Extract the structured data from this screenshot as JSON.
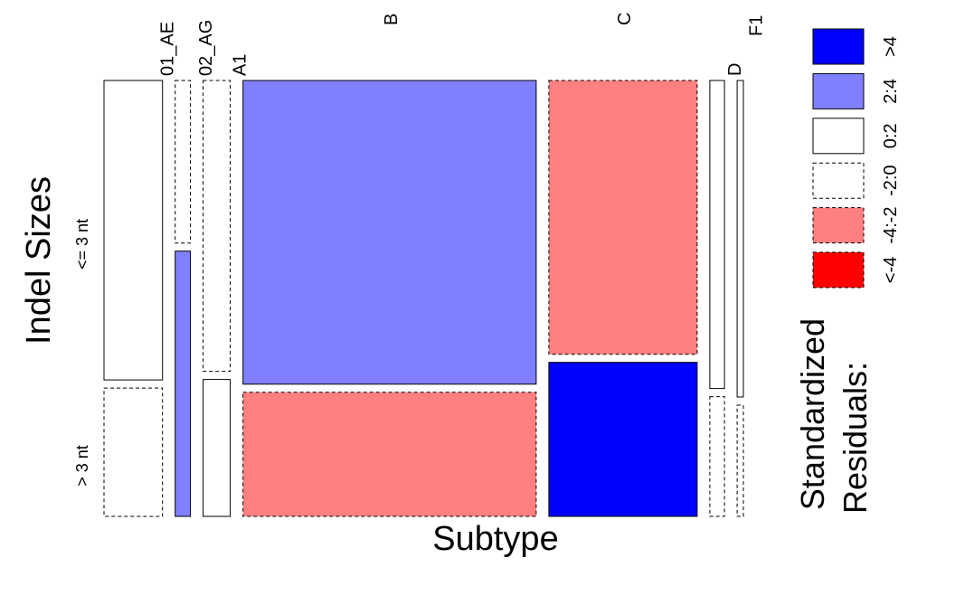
{
  "chart_data": {
    "type": "mosaic",
    "xlabel": "Subtype",
    "ylabel": "Indel Sizes",
    "categories": [
      "01_AE",
      "02_AG",
      "A1",
      "B",
      "C",
      "D",
      "F1"
    ],
    "rows": [
      "<= 3 nt",
      "> 3 nt"
    ],
    "column_proportions": [
      0.084,
      0.022,
      0.039,
      0.421,
      0.213,
      0.021,
      0.009
    ],
    "row_fraction_le3": [
      0.7,
      0.38,
      0.68,
      0.71,
      0.64,
      0.72,
      0.74
    ],
    "residual_class": [
      [
        "0:2",
        "-2:0"
      ],
      [
        "-2:0",
        "2:4"
      ],
      [
        "-2:0",
        "0:2"
      ],
      [
        "2:4",
        "-4:-2"
      ],
      [
        "-4:-2",
        ">4"
      ],
      [
        "0:2",
        "-2:0"
      ],
      [
        "0:2",
        "-2:0"
      ]
    ],
    "legend": {
      "title": [
        "Standardized",
        "Residuals:"
      ],
      "items": [
        {
          "label": ">4",
          "color": "#0000ff",
          "border": "solid"
        },
        {
          "label": "2:4",
          "color": "#8080ff",
          "border": "solid"
        },
        {
          "label": "0:2",
          "color": "#ffffff",
          "border": "solid"
        },
        {
          "label": "-2:0",
          "color": "#ffffff",
          "border": "dashed"
        },
        {
          "label": "-4:-2",
          "color": "#ff8080",
          "border": "dashed"
        },
        {
          "label": "<-4",
          "color": "#ff0000",
          "border": "dashed"
        }
      ]
    },
    "colors": {
      ">4": "#0000ff",
      "2:4": "#8080ff",
      "0:2": "#ffffff",
      "-2:0": "#ffffff",
      "-4:-2": "#ff8080",
      "<-4": "#ff0000"
    }
  }
}
